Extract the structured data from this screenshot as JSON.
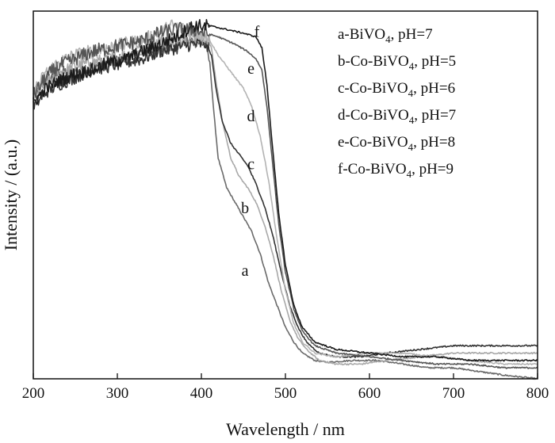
{
  "chart_data": {
    "type": "line",
    "xlabel": "Wavelength / nm",
    "ylabel": "Intensity / (a.u.)",
    "xlim": [
      200,
      800
    ],
    "ylim": [
      0,
      1
    ],
    "x_ticks": [
      200,
      300,
      400,
      500,
      600,
      700,
      800
    ],
    "x_tick_labels": [
      "200",
      "300",
      "400",
      "500",
      "600",
      "700",
      "800"
    ],
    "y_ticks_labeled": false,
    "grid": false,
    "legend_position": "top-right",
    "series": [
      {
        "name": "a-BiVO4, pH=7",
        "legend_parts": [
          "a-BiVO",
          "4",
          ", pH=7"
        ],
        "curve_label": "a",
        "label_at": [
          452,
          0.28
        ],
        "color": "#6a6a6a",
        "noise": 0.018,
        "points": [
          [
            200,
            0.77
          ],
          [
            215,
            0.81
          ],
          [
            230,
            0.83
          ],
          [
            250,
            0.84
          ],
          [
            270,
            0.85
          ],
          [
            290,
            0.86
          ],
          [
            310,
            0.87
          ],
          [
            330,
            0.89
          ],
          [
            350,
            0.9
          ],
          [
            370,
            0.91
          ],
          [
            390,
            0.92
          ],
          [
            405,
            0.91
          ],
          [
            410,
            0.86
          ],
          [
            415,
            0.72
          ],
          [
            420,
            0.6
          ],
          [
            430,
            0.52
          ],
          [
            440,
            0.48
          ],
          [
            450,
            0.44
          ],
          [
            460,
            0.4
          ],
          [
            470,
            0.34
          ],
          [
            480,
            0.26
          ],
          [
            490,
            0.2
          ],
          [
            500,
            0.14
          ],
          [
            510,
            0.1
          ],
          [
            520,
            0.07
          ],
          [
            535,
            0.05
          ],
          [
            550,
            0.045
          ],
          [
            580,
            0.05
          ],
          [
            610,
            0.05
          ],
          [
            640,
            0.04
          ],
          [
            670,
            0.03
          ],
          [
            700,
            0.03
          ],
          [
            730,
            0.02
          ],
          [
            760,
            0.01
          ],
          [
            800,
            0.0
          ]
        ]
      },
      {
        "name": "b-Co-BiVO4, pH=5",
        "legend_parts": [
          "b-Co-BiVO",
          "4",
          ", pH=5"
        ],
        "curve_label": "b",
        "label_at": [
          452,
          0.45
        ],
        "color": "#a8a8a8",
        "noise": 0.018,
        "points": [
          [
            200,
            0.77
          ],
          [
            215,
            0.8
          ],
          [
            230,
            0.83
          ],
          [
            250,
            0.85
          ],
          [
            270,
            0.86
          ],
          [
            290,
            0.87
          ],
          [
            310,
            0.88
          ],
          [
            330,
            0.89
          ],
          [
            350,
            0.92
          ],
          [
            370,
            0.92
          ],
          [
            390,
            0.93
          ],
          [
            405,
            0.93
          ],
          [
            412,
            0.9
          ],
          [
            418,
            0.8
          ],
          [
            425,
            0.7
          ],
          [
            435,
            0.6
          ],
          [
            445,
            0.55
          ],
          [
            455,
            0.52
          ],
          [
            465,
            0.48
          ],
          [
            475,
            0.42
          ],
          [
            485,
            0.34
          ],
          [
            495,
            0.24
          ],
          [
            505,
            0.16
          ],
          [
            515,
            0.11
          ],
          [
            525,
            0.08
          ],
          [
            540,
            0.05
          ],
          [
            560,
            0.04
          ],
          [
            590,
            0.04
          ],
          [
            620,
            0.05
          ],
          [
            660,
            0.06
          ],
          [
            700,
            0.07
          ],
          [
            740,
            0.07
          ],
          [
            800,
            0.07
          ]
        ]
      },
      {
        "name": "c-Co-BiVO4, pH=6",
        "legend_parts": [
          "c-Co-BiVO",
          "4",
          ", pH=6"
        ],
        "curve_label": "c",
        "label_at": [
          459,
          0.57
        ],
        "color": "#333333",
        "noise": 0.018,
        "points": [
          [
            200,
            0.74
          ],
          [
            215,
            0.78
          ],
          [
            230,
            0.8
          ],
          [
            250,
            0.82
          ],
          [
            270,
            0.84
          ],
          [
            290,
            0.85
          ],
          [
            310,
            0.86
          ],
          [
            330,
            0.87
          ],
          [
            350,
            0.89
          ],
          [
            370,
            0.9
          ],
          [
            390,
            0.91
          ],
          [
            405,
            0.91
          ],
          [
            412,
            0.88
          ],
          [
            418,
            0.78
          ],
          [
            425,
            0.7
          ],
          [
            435,
            0.64
          ],
          [
            445,
            0.61
          ],
          [
            455,
            0.58
          ],
          [
            465,
            0.53
          ],
          [
            475,
            0.47
          ],
          [
            485,
            0.39
          ],
          [
            495,
            0.29
          ],
          [
            505,
            0.2
          ],
          [
            515,
            0.14
          ],
          [
            525,
            0.1
          ],
          [
            540,
            0.07
          ],
          [
            560,
            0.06
          ],
          [
            590,
            0.06
          ],
          [
            620,
            0.07
          ],
          [
            660,
            0.08
          ],
          [
            700,
            0.09
          ],
          [
            740,
            0.09
          ],
          [
            800,
            0.09
          ]
        ]
      },
      {
        "name": "d-Co-BiVO4, pH=7",
        "legend_parts": [
          "d-Co-BiVO",
          "4",
          ", pH=7"
        ],
        "curve_label": "d",
        "label_at": [
          459,
          0.7
        ],
        "color": "#b3b3b3",
        "noise": 0.02,
        "points": [
          [
            200,
            0.78
          ],
          [
            215,
            0.83
          ],
          [
            230,
            0.86
          ],
          [
            250,
            0.88
          ],
          [
            270,
            0.89
          ],
          [
            290,
            0.9
          ],
          [
            310,
            0.91
          ],
          [
            330,
            0.92
          ],
          [
            350,
            0.94
          ],
          [
            365,
            0.96
          ],
          [
            380,
            0.95
          ],
          [
            395,
            0.94
          ],
          [
            405,
            0.93
          ],
          [
            410,
            0.92
          ],
          [
            420,
            0.88
          ],
          [
            430,
            0.85
          ],
          [
            440,
            0.82
          ],
          [
            450,
            0.79
          ],
          [
            460,
            0.74
          ],
          [
            470,
            0.66
          ],
          [
            480,
            0.54
          ],
          [
            490,
            0.38
          ],
          [
            500,
            0.24
          ],
          [
            510,
            0.15
          ],
          [
            520,
            0.1
          ],
          [
            535,
            0.07
          ],
          [
            560,
            0.06
          ],
          [
            600,
            0.07
          ],
          [
            640,
            0.07
          ],
          [
            680,
            0.06
          ],
          [
            720,
            0.05
          ],
          [
            760,
            0.04
          ],
          [
            800,
            0.04
          ]
        ]
      },
      {
        "name": "e-Co-BiVO4, pH=8",
        "legend_parts": [
          "e-Co-BiVO",
          "4",
          ", pH=8"
        ],
        "curve_label": "e",
        "label_at": [
          459,
          0.83
        ],
        "color": "#555555",
        "noise": 0.02,
        "points": [
          [
            200,
            0.77
          ],
          [
            215,
            0.82
          ],
          [
            230,
            0.85
          ],
          [
            250,
            0.87
          ],
          [
            270,
            0.89
          ],
          [
            290,
            0.9
          ],
          [
            310,
            0.91
          ],
          [
            330,
            0.92
          ],
          [
            350,
            0.94
          ],
          [
            370,
            0.95
          ],
          [
            390,
            0.95
          ],
          [
            405,
            0.94
          ],
          [
            420,
            0.93
          ],
          [
            440,
            0.91
          ],
          [
            455,
            0.89
          ],
          [
            465,
            0.87
          ],
          [
            472,
            0.84
          ],
          [
            478,
            0.74
          ],
          [
            485,
            0.58
          ],
          [
            492,
            0.42
          ],
          [
            500,
            0.29
          ],
          [
            510,
            0.19
          ],
          [
            520,
            0.13
          ],
          [
            535,
            0.09
          ],
          [
            560,
            0.07
          ],
          [
            600,
            0.06
          ],
          [
            640,
            0.05
          ],
          [
            680,
            0.04
          ],
          [
            720,
            0.04
          ],
          [
            760,
            0.03
          ],
          [
            800,
            0.03
          ]
        ]
      },
      {
        "name": "f-Co-BiVO4, pH=9",
        "legend_parts": [
          "f-Co-BiVO",
          "4",
          ", pH=9"
        ],
        "curve_label": "f",
        "label_at": [
          466,
          0.93
        ],
        "color": "#1a1a1a",
        "noise": 0.018,
        "points": [
          [
            200,
            0.75
          ],
          [
            215,
            0.79
          ],
          [
            230,
            0.81
          ],
          [
            250,
            0.83
          ],
          [
            270,
            0.84
          ],
          [
            290,
            0.86
          ],
          [
            310,
            0.87
          ],
          [
            330,
            0.89
          ],
          [
            350,
            0.91
          ],
          [
            370,
            0.93
          ],
          [
            390,
            0.96
          ],
          [
            410,
            0.96
          ],
          [
            430,
            0.95
          ],
          [
            450,
            0.94
          ],
          [
            465,
            0.93
          ],
          [
            472,
            0.9
          ],
          [
            478,
            0.8
          ],
          [
            485,
            0.62
          ],
          [
            492,
            0.45
          ],
          [
            500,
            0.31
          ],
          [
            510,
            0.2
          ],
          [
            520,
            0.14
          ],
          [
            535,
            0.1
          ],
          [
            560,
            0.08
          ],
          [
            600,
            0.07
          ],
          [
            640,
            0.06
          ],
          [
            680,
            0.06
          ],
          [
            720,
            0.05
          ],
          [
            760,
            0.05
          ],
          [
            800,
            0.05
          ]
        ]
      }
    ]
  }
}
